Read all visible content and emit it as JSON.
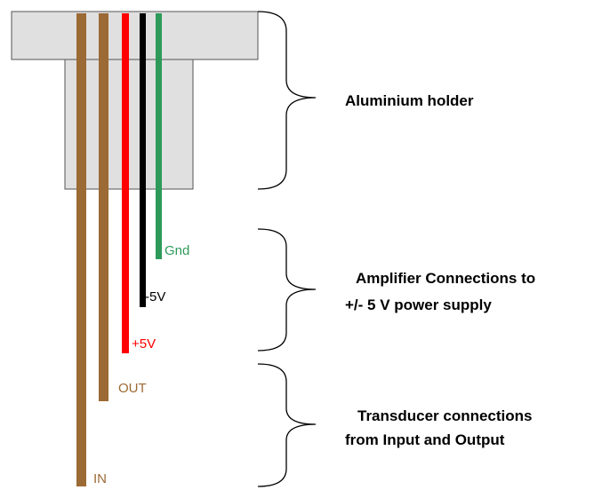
{
  "wires": {
    "gnd": "Gnd",
    "minus5v": "-5V",
    "plus5v": "+5V",
    "out": "OUT",
    "in": "IN"
  },
  "groups": [
    {
      "lines": [
        "Aluminium holder"
      ]
    },
    {
      "lines": [
        "Amplifier Connections to",
        "+/- 5 V power supply"
      ]
    },
    {
      "lines": [
        "Transducer connections",
        "from Input and Output"
      ]
    }
  ]
}
